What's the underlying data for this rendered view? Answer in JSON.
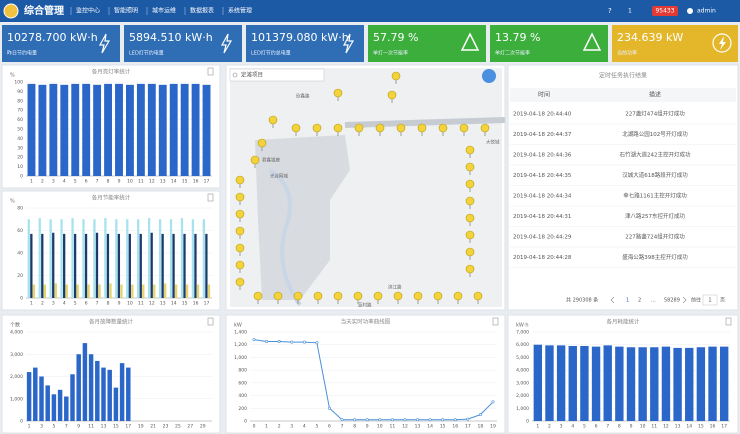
{
  "header": {
    "title": "综合管理",
    "menu": [
      "监控中心",
      "智能照明",
      "城市运维",
      "数据报表",
      "系统管理"
    ],
    "help": "?",
    "messages": "1",
    "badge": "95433",
    "user": "admin"
  },
  "kpis": [
    {
      "value": "10278.700 kW·h",
      "label": "昨日节约电量"
    },
    {
      "value": "5894.510 kW·h",
      "label": "LED灯节约电量"
    },
    {
      "value": "101379.080 kW·h",
      "label": "LED灯节约总电量"
    },
    {
      "value": "57.79 %",
      "label": "单灯一次节能率"
    },
    {
      "value": "13.79 %",
      "label": "单灯二次节能率"
    },
    {
      "value": "234.639 kW",
      "label": "当前功率"
    }
  ],
  "chart_data": [
    {
      "type": "bar",
      "title": "各月亮灯率统计",
      "unit": "%",
      "categories": [
        1,
        2,
        3,
        4,
        5,
        6,
        7,
        8,
        9,
        10,
        11,
        12,
        13,
        14,
        15,
        16,
        17
      ],
      "values": [
        98,
        97,
        98,
        97,
        98,
        98,
        97,
        98,
        98,
        97,
        98,
        98,
        97,
        98,
        98,
        98,
        97
      ],
      "color": "#2b66c9",
      "ylim": [
        0,
        100
      ],
      "yticks": [
        0,
        10,
        20,
        30,
        40,
        50,
        60,
        70,
        80,
        90,
        100
      ],
      "grid": true
    },
    {
      "type": "bar",
      "title": "各月节能率统计",
      "unit": "%",
      "categories": [
        1,
        2,
        3,
        4,
        5,
        6,
        7,
        8,
        9,
        10,
        11,
        12,
        13,
        14,
        15,
        16,
        17
      ],
      "series": [
        {
          "color": "#a6e3ee",
          "values": [
            70,
            71,
            70,
            70,
            71,
            70,
            70,
            71,
            70,
            70,
            70,
            71,
            70,
            70,
            71,
            70,
            70
          ]
        },
        {
          "color": "#1c3b6c",
          "values": [
            57,
            57,
            58,
            57,
            57,
            57,
            58,
            57,
            57,
            57,
            57,
            58,
            57,
            57,
            57,
            57,
            57
          ]
        },
        {
          "color": "#e6d36b",
          "values": [
            12,
            12,
            13,
            12,
            12,
            12,
            12,
            13,
            12,
            12,
            12,
            12,
            13,
            12,
            12,
            12,
            12
          ]
        }
      ],
      "ylim": [
        0,
        80
      ],
      "yticks": [
        0,
        20,
        40,
        60,
        80
      ],
      "grid": true
    },
    {
      "type": "bar",
      "title": "各月故障数量统计",
      "unit": "个数",
      "categories": [
        1,
        null,
        3,
        null,
        5,
        null,
        7,
        null,
        9,
        null,
        11,
        null,
        13,
        null,
        15,
        null,
        17,
        null,
        19,
        null,
        21,
        null,
        23,
        null,
        25,
        null,
        27,
        null,
        29,
        null
      ],
      "values": [
        2200,
        2400,
        2000,
        1600,
        1200,
        1400,
        1100,
        2100,
        3000,
        3500,
        3000,
        2700,
        2400,
        2300,
        1500,
        2600,
        2400,
        0,
        0,
        0,
        0,
        0,
        0,
        0,
        0,
        0,
        0,
        0,
        0,
        0
      ],
      "color": "#2b66c9",
      "ylim": [
        0,
        4000
      ],
      "yticks": [
        0,
        {
          "value": 1000,
          "label": "1,000"
        },
        {
          "value": 2000,
          "label": "2,000"
        },
        {
          "value": 3000,
          "label": "3,000"
        },
        {
          "value": 4000,
          "label": "4,000"
        }
      ],
      "grid": true
    },
    {
      "type": "line",
      "title": "当天实时功率曲线图",
      "unit": "kW",
      "categories": [
        0,
        1,
        2,
        3,
        4,
        5,
        6,
        7,
        8,
        9,
        10,
        11,
        12,
        13,
        14,
        15,
        16,
        17,
        18,
        19
      ],
      "values": [
        1280,
        1250,
        1250,
        1240,
        1240,
        1230,
        200,
        20,
        20,
        20,
        20,
        20,
        20,
        20,
        20,
        20,
        20,
        30,
        100,
        300
      ],
      "color": "#4a90d9",
      "ylim": [
        0,
        1400
      ],
      "yticks": [
        0,
        200,
        400,
        600,
        800,
        {
          "value": 1000,
          "label": "1,000"
        },
        {
          "value": 1200,
          "label": "1,200"
        },
        {
          "value": 1400,
          "label": "1,400"
        }
      ],
      "grid": true
    },
    {
      "type": "bar",
      "title": "各月耗能统计",
      "unit": "kW·h",
      "categories": [
        1,
        2,
        3,
        4,
        5,
        6,
        7,
        8,
        9,
        10,
        11,
        12,
        13,
        14,
        15,
        16,
        17
      ],
      "values": [
        6000,
        5950,
        5950,
        5900,
        5900,
        5850,
        5950,
        5850,
        5800,
        5800,
        5800,
        5850,
        5750,
        5750,
        5800,
        5850,
        5850
      ],
      "color": "#2b66c9",
      "ylim": [
        0,
        7000
      ],
      "yticks": [
        0,
        {
          "value": 1000,
          "label": "1,000"
        },
        {
          "value": 2000,
          "label": "2,000"
        },
        {
          "value": 3000,
          "label": "3,000"
        },
        {
          "value": 4000,
          "label": "4,000"
        },
        {
          "value": 5000,
          "label": "5,000"
        },
        {
          "value": 6000,
          "label": "6,000"
        },
        {
          "value": 7000,
          "label": "7,000"
        }
      ],
      "grid": true
    }
  ],
  "map": {
    "search": "定滩项目",
    "labels": [
      "欣鑫路",
      "君鑫银座",
      "光谷网城",
      "大悦城",
      "滨江路",
      "蓝村路"
    ]
  },
  "table": {
    "title": "定时任务执行结果",
    "columns": [
      "时间",
      "描述"
    ],
    "rows": [
      [
        "2019-04-18 20:44:40",
        "227盏灯474组开灯成功"
      ],
      [
        "2019-04-18 20:44:37",
        "北湖路公园102号开灯成功"
      ],
      [
        "2019-04-18 20:44:36",
        "石竹湖大道242主控开灯成功"
      ],
      [
        "2019-04-18 20:44:35",
        "汉城大道618路段开灯成功"
      ],
      [
        "2019-04-18 20:44:34",
        "幸七路1161主控开灯成功"
      ],
      [
        "2019-04-18 20:44:31",
        "津八路257东控开灯成功"
      ],
      [
        "2019-04-18 20:44:29",
        "227路盏724组开灯成功"
      ],
      [
        "2019-04-18 20:44:28",
        "盛海公路398主控开灯成功"
      ]
    ]
  },
  "pagination": {
    "total": "共 290308 条",
    "pages": [
      "1",
      "2",
      "...",
      "58289"
    ],
    "goto": "前往",
    "page": "1",
    "unit": "页"
  }
}
